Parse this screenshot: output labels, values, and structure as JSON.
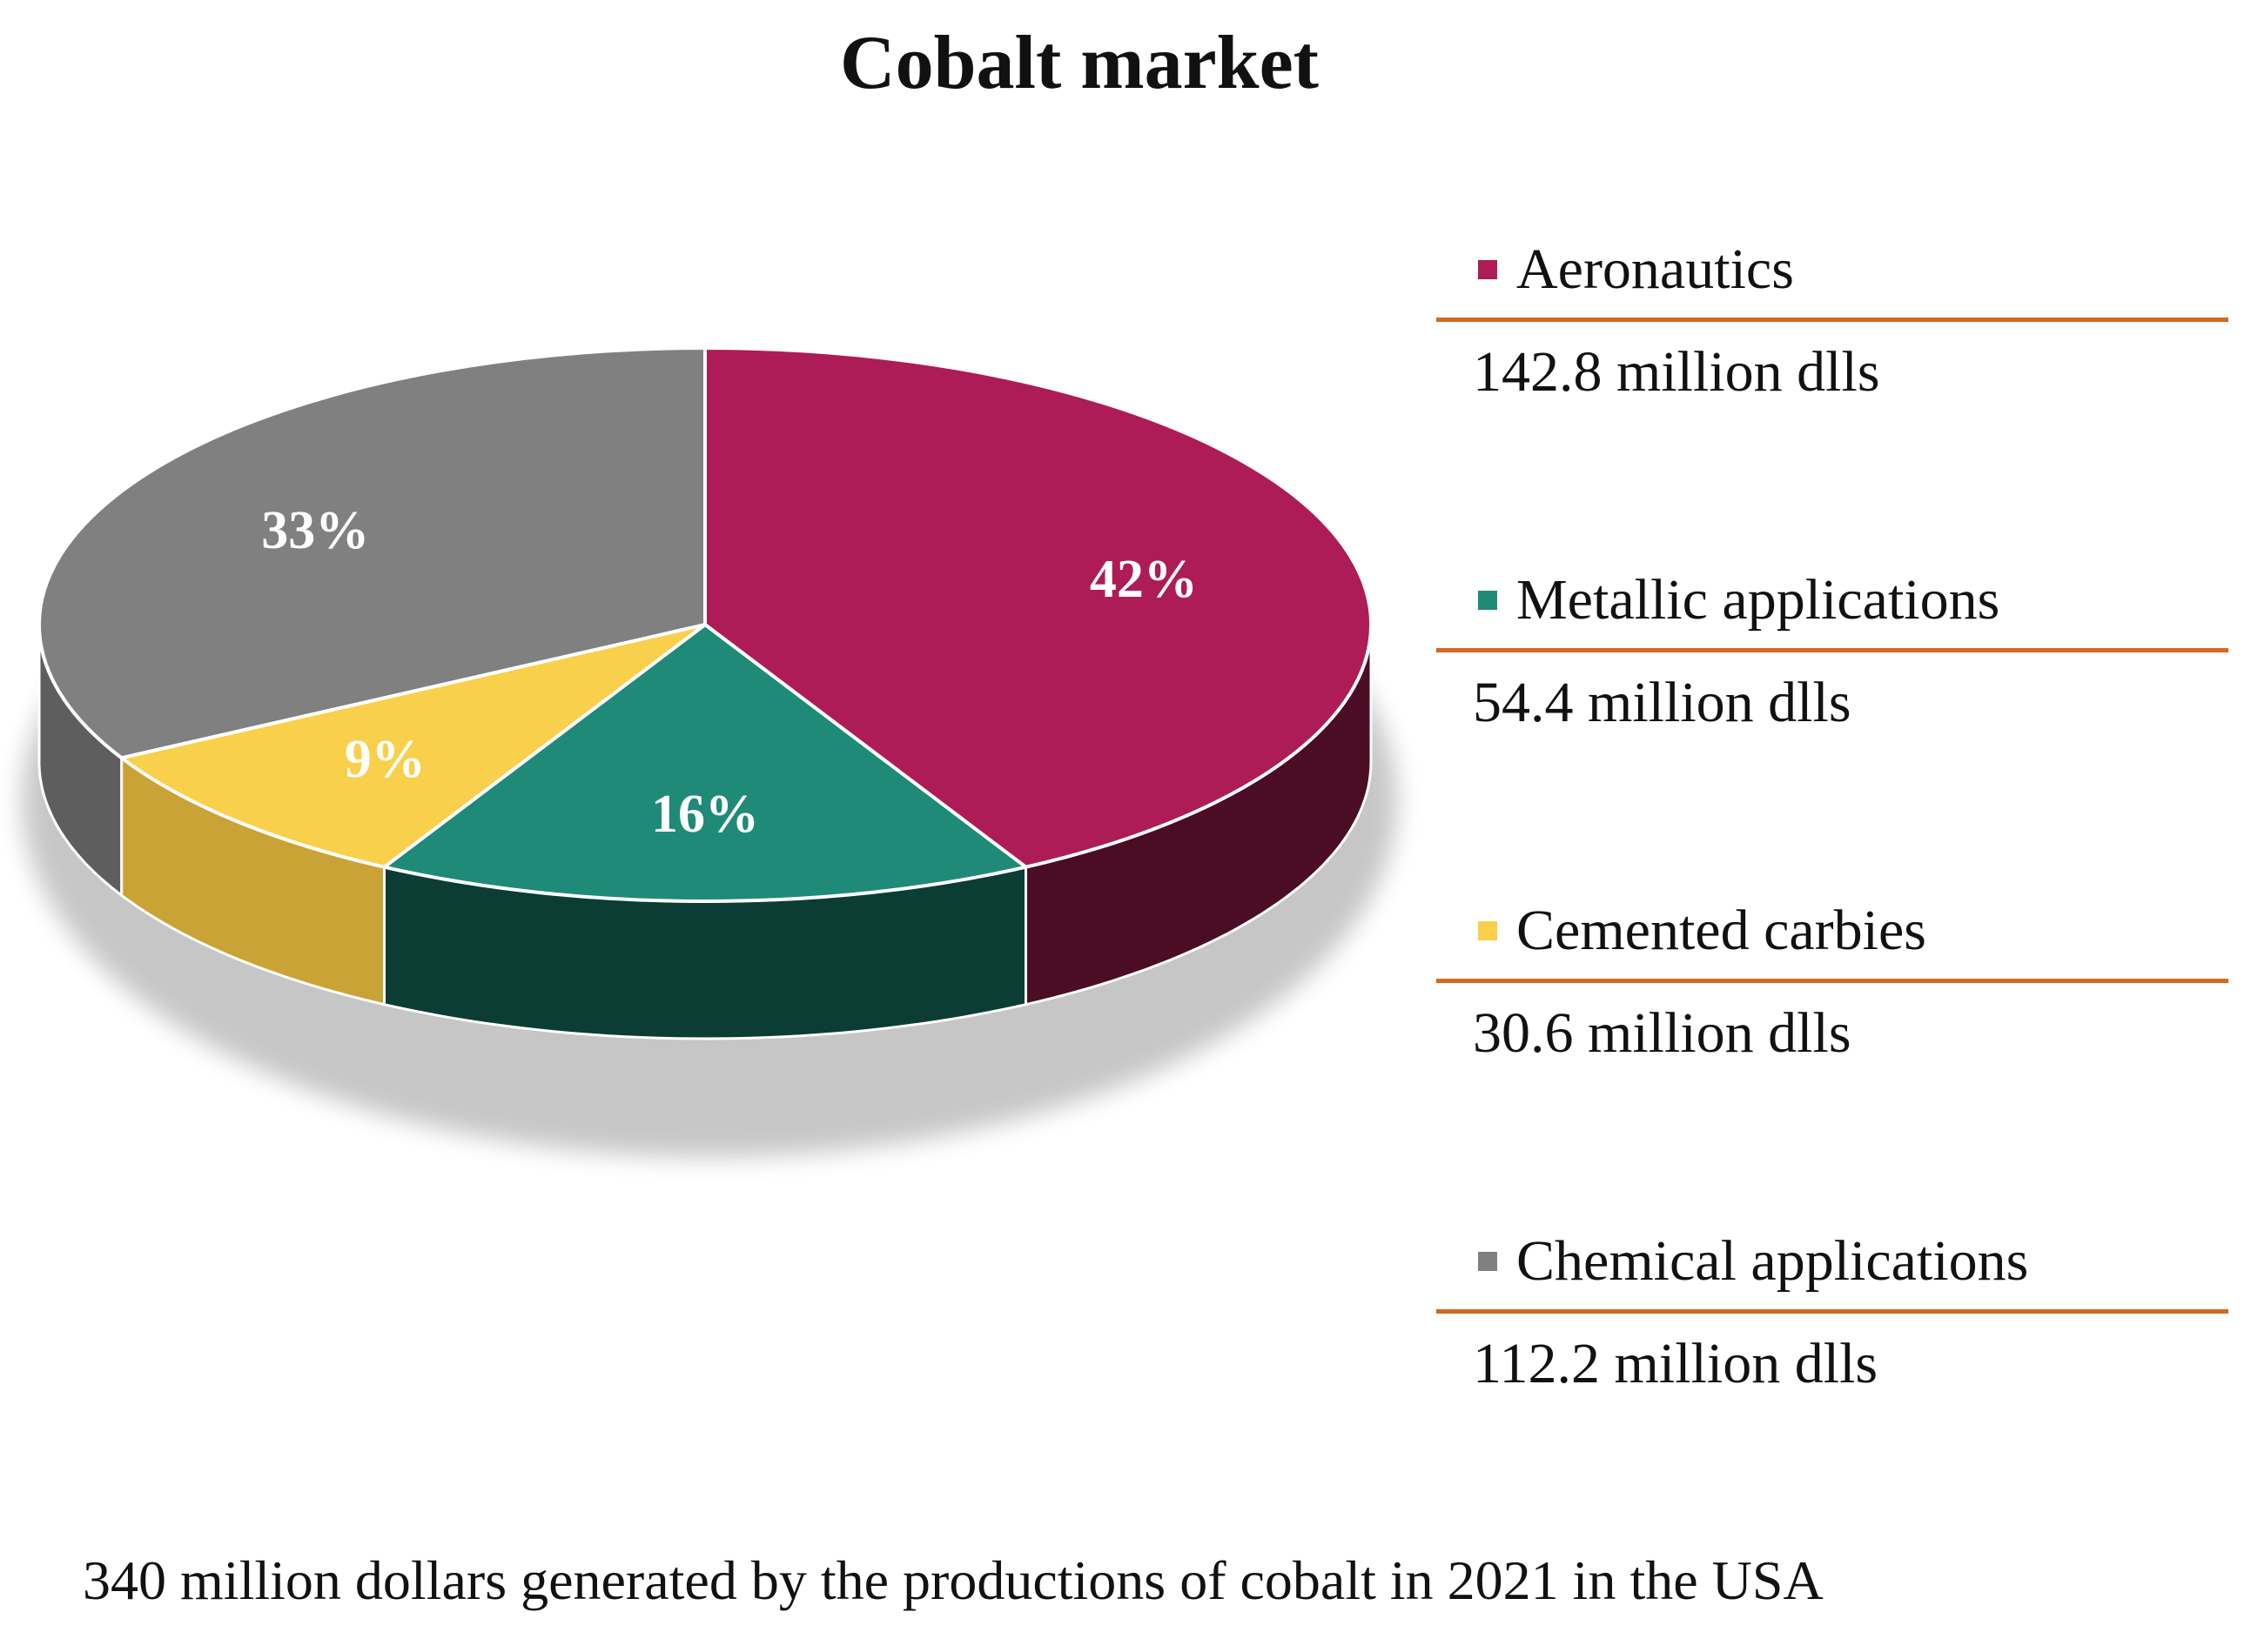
{
  "chart_data": {
    "type": "pie",
    "title": "Cobalt market",
    "subtitle": "",
    "caption": "340 million dollars generated by the productions of cobalt in 2021 in the USA",
    "legend_position": "right",
    "slices": [
      {
        "name": "Aeronautics",
        "percent": 42,
        "label": "42%",
        "value": 142.8,
        "value_label": "142.8 million dlls",
        "color": "#AD1C56",
        "side_color": "#4A0D24"
      },
      {
        "name": "Metallic applications",
        "percent": 16,
        "label": "16%",
        "value": 54.4,
        "value_label": "54.4 million dlls",
        "color": "#1F8A78",
        "side_color": "#0C3D34"
      },
      {
        "name": "Cemented carbies",
        "percent": 9,
        "label": "9%",
        "value": 30.6,
        "value_label": "30.6 million dlls",
        "color": "#F9D04B",
        "side_color": "#C9A335"
      },
      {
        "name": "Chemical applications",
        "percent": 33,
        "label": "33%",
        "value": 112.2,
        "value_label": "112.2 million dlls",
        "color": "#808080",
        "side_color": "#5E5E5E"
      }
    ]
  },
  "colors": {
    "legend_rule": "#D2691E"
  }
}
